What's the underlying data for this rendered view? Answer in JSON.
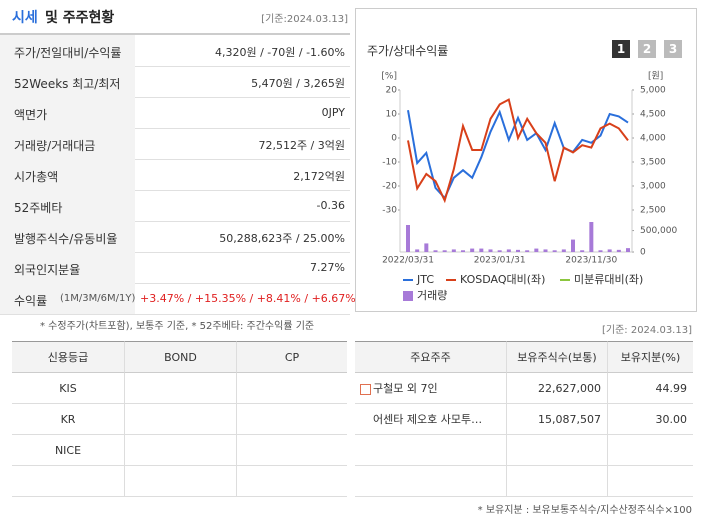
{
  "header": {
    "title_highlight": "시세",
    "title": "및 주주현황",
    "date": "[기준:2024.03.13]"
  },
  "quote_table": {
    "rows": [
      {
        "label": "주가/전일대비/수익률",
        "value": "4,320원 / -70원 / -1.60%"
      },
      {
        "label": "52Weeks 최고/최저",
        "value": "5,470원 / 3,265원"
      },
      {
        "label": "액면가",
        "value": "0JPY"
      },
      {
        "label": "거래량/거래대금",
        "value": "72,512주 / 3억원"
      },
      {
        "label": "시가총액",
        "value": "2,172억원"
      },
      {
        "label": "52주베타",
        "value": "-0.36"
      },
      {
        "label": "발행주식수/유동비율",
        "value": "50,288,623주 / 25.00%"
      },
      {
        "label": "외국인지분율",
        "value": "7.27%"
      },
      {
        "label": "수익률",
        "sublabel": "(1M/3M/6M/1Y)",
        "value": "+3.47% / +15.35% / +8.41% / +6.67%",
        "color": "#e02020"
      }
    ],
    "note": "* 수정주가(차트포함), 보통주 기준, * 52주베타: 주간수익률 기준"
  },
  "chart_panel": {
    "title": "주가/상대수익률",
    "buttons": [
      "1",
      "2",
      "3"
    ],
    "date": "[기준: 2024.03.13]"
  },
  "chart_data": {
    "type": "line",
    "categories": [
      "2022/03/31",
      null,
      null,
      null,
      null,
      null,
      null,
      null,
      null,
      null,
      "2023/01/31",
      null,
      null,
      null,
      null,
      null,
      null,
      null,
      null,
      null,
      "2023/11/30",
      null,
      null,
      null,
      null
    ],
    "y_unit": "[%]",
    "y2_unit": "[원]",
    "ylim": [
      -30,
      20
    ],
    "yticks": [
      20,
      10,
      0,
      -10,
      -20,
      -30
    ],
    "y2lim": [
      2500,
      5000
    ],
    "y2ticks": [
      {
        "value": 5000,
        "label": "5,000"
      },
      {
        "value": 4500,
        "label": "4,500"
      },
      {
        "value": 4000,
        "label": "4,000"
      },
      {
        "value": 3500,
        "label": "3,500"
      },
      {
        "value": 3000,
        "label": "3,000"
      },
      {
        "value": 2500,
        "label": "2,500"
      }
    ],
    "vlim": [
      0,
      700000
    ],
    "vticks": [
      {
        "value": 500000,
        "label": "500,000"
      },
      0
    ],
    "series": [
      {
        "name": "JTC",
        "color": "#2a6fdb",
        "axis": "y2",
        "values": [
          4580,
          3480,
          3690,
          2960,
          2750,
          3170,
          3330,
          3170,
          3600,
          4130,
          4540,
          3960,
          4420,
          3960,
          4100,
          3750,
          4310,
          3790,
          3710,
          3960,
          3900,
          4050,
          4500,
          4450,
          4320
        ]
      },
      {
        "name": "KOSDAQ대비(좌)",
        "color": "#d8401a",
        "values": [
          -1,
          -21,
          -15,
          -18,
          -26,
          -13,
          5,
          -5,
          -5,
          8,
          14,
          16,
          0,
          8,
          2,
          -2,
          -18,
          -4,
          -6,
          -3,
          -4,
          4,
          6,
          4,
          -1
        ]
      },
      {
        "name": "미분류대비(좌)",
        "color": "#8cc63f",
        "values": [
          null,
          null,
          null,
          null,
          null,
          null,
          null,
          null,
          null,
          null,
          null,
          null,
          null,
          null,
          null,
          null,
          null,
          null,
          null,
          null,
          null,
          null,
          null,
          null,
          null
        ]
      },
      {
        "name": "거래량",
        "color": "#a77ad8",
        "type": "bar",
        "axis": "v",
        "values": [
          630000,
          60000,
          200000,
          40000,
          40000,
          60000,
          40000,
          80000,
          80000,
          60000,
          40000,
          60000,
          50000,
          40000,
          80000,
          60000,
          40000,
          60000,
          290000,
          40000,
          700000,
          40000,
          60000,
          50000,
          90000
        ]
      }
    ]
  },
  "credit_table": {
    "header": [
      "신용등급",
      "BOND",
      "CP"
    ],
    "rows": [
      [
        "KIS",
        "",
        ""
      ],
      [
        "KR",
        "",
        ""
      ],
      [
        "NICE",
        "",
        ""
      ],
      [
        "",
        "",
        ""
      ]
    ]
  },
  "holder_table": {
    "header": [
      "주요주주",
      "보유주식수(보통)",
      "보유지분(%)"
    ],
    "rows": [
      [
        "구철모 외 7인",
        "22,627,000",
        "44.99"
      ],
      [
        "어센타 제오호 사모투…",
        "15,087,507",
        "30.00"
      ],
      [
        "",
        "",
        ""
      ],
      [
        "",
        "",
        ""
      ]
    ],
    "note": "* 보유지분 : 보유보통주식수/지수산정주식수×100"
  }
}
